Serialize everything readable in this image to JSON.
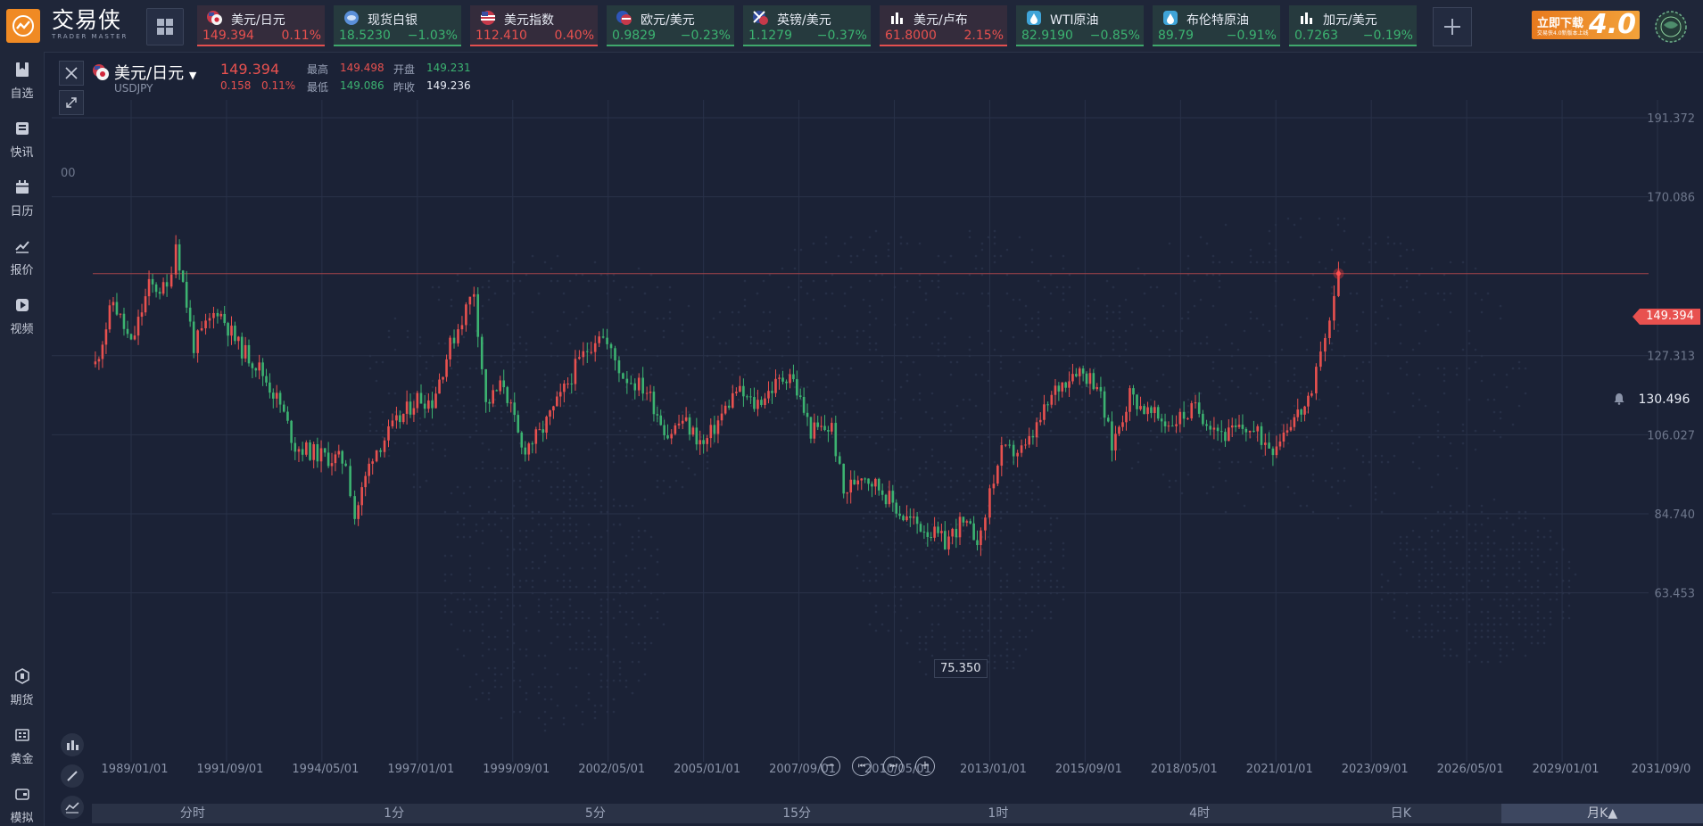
{
  "brand": {
    "name_cn": "交易侠",
    "name_en": "TRADER MASTER"
  },
  "tickers": [
    {
      "name": "美元/日元",
      "price": "149.394",
      "pct": "0.11%",
      "dir": "up",
      "icon": "us-jp-flag-icon"
    },
    {
      "name": "现货白银",
      "price": "18.5230",
      "pct": "−1.03%",
      "dir": "dn",
      "icon": "silver-icon"
    },
    {
      "name": "美元指数",
      "price": "112.410",
      "pct": "0.40%",
      "dir": "up",
      "icon": "us-flag-icon"
    },
    {
      "name": "欧元/美元",
      "price": "0.9829",
      "pct": "−0.23%",
      "dir": "dn",
      "icon": "eu-us-flag-icon"
    },
    {
      "name": "英镑/美元",
      "price": "1.1279",
      "pct": "−0.37%",
      "dir": "dn",
      "icon": "gb-us-flag-icon"
    },
    {
      "name": "美元/卢布",
      "price": "61.8000",
      "pct": "2.15%",
      "dir": "up",
      "icon": "bar-chart-icon"
    },
    {
      "name": "WTI原油",
      "price": "82.9190",
      "pct": "−0.85%",
      "dir": "dn",
      "icon": "oil-icon"
    },
    {
      "name": "布伦特原油",
      "price": "89.79",
      "pct": "−0.91%",
      "dir": "dn",
      "icon": "oil-icon"
    },
    {
      "name": "加元/美元",
      "price": "0.7263",
      "pct": "−0.19%",
      "dir": "dn",
      "icon": "bar-chart-icon"
    }
  ],
  "promo": {
    "line1": "立即下载",
    "line2": "交易侠4.0新版本上线",
    "big": "4.0"
  },
  "sidebar": [
    {
      "label": "自选",
      "icon": "bookmark-icon"
    },
    {
      "label": "快讯",
      "icon": "news-icon"
    },
    {
      "label": "日历",
      "icon": "calendar-icon"
    },
    {
      "label": "报价",
      "icon": "quote-chart-icon"
    },
    {
      "label": "视频",
      "icon": "video-icon"
    },
    {
      "label": "期货",
      "icon": "futures-icon"
    },
    {
      "label": "黄金",
      "icon": "gold-icon"
    },
    {
      "label": "模拟",
      "icon": "simulate-icon"
    }
  ],
  "symbol": {
    "title": "美元/日元",
    "code": "USDJPY",
    "last": "149.394",
    "change": "0.158",
    "change_pct": "0.11%",
    "high_label": "最高",
    "high": "149.498",
    "open_label": "开盘",
    "open": "149.231",
    "low_label": "最低",
    "low": "149.086",
    "prev_label": "昨收",
    "prev": "149.236"
  },
  "price_tag": "149.394",
  "alert_price": "130.496",
  "min_label": "75.350",
  "y_ticks": [
    "191.372",
    "170.086",
    "149.394",
    "127.313",
    "106.027",
    "84.740",
    "63.453"
  ],
  "x_ticks": [
    "1989/01/01",
    "1991/09/01",
    "1994/05/01",
    "1997/01/01",
    "1999/09/01",
    "2002/05/01",
    "2005/01/01",
    "2007/09/01",
    "2010/05/01",
    "2013/01/01",
    "2015/09/01",
    "2018/05/01",
    "2021/01/01",
    "2023/09/01",
    "2026/05/01",
    "2029/01/01",
    "2031/09/0"
  ],
  "periods": [
    "分时",
    "1分",
    "5分",
    "15分",
    "1时",
    "4时",
    "日K",
    "月K▲"
  ],
  "active_period": 7,
  "chart_data": {
    "type": "candlestick",
    "x_unit": "date",
    "y_ticks": [
      63.453,
      84.74,
      106.027,
      127.313,
      170.086,
      191.372
    ],
    "series": [
      {
        "x": "1988-01",
        "y": 125
      },
      {
        "x": "1988-07",
        "y": 142
      },
      {
        "x": "1989-01",
        "y": 130
      },
      {
        "x": "1989-07",
        "y": 146
      },
      {
        "x": "1990-01",
        "y": 145
      },
      {
        "x": "1990-04",
        "y": 158
      },
      {
        "x": "1990-10",
        "y": 130
      },
      {
        "x": "1991-06",
        "y": 140
      },
      {
        "x": "1992-01",
        "y": 130
      },
      {
        "x": "1992-08",
        "y": 124
      },
      {
        "x": "1993-03",
        "y": 114
      },
      {
        "x": "1993-08",
        "y": 103
      },
      {
        "x": "1994-06",
        "y": 100
      },
      {
        "x": "1995-01",
        "y": 99
      },
      {
        "x": "1995-04",
        "y": 84
      },
      {
        "x": "1995-10",
        "y": 101
      },
      {
        "x": "1996-06",
        "y": 109
      },
      {
        "x": "1997-01",
        "y": 116
      },
      {
        "x": "1997-06",
        "y": 115
      },
      {
        "x": "1997-12",
        "y": 130
      },
      {
        "x": "1998-08",
        "y": 145
      },
      {
        "x": "1998-12",
        "y": 114
      },
      {
        "x": "1999-06",
        "y": 120
      },
      {
        "x": "1999-12",
        "y": 102
      },
      {
        "x": "2000-06",
        "y": 106
      },
      {
        "x": "2001-01",
        "y": 116
      },
      {
        "x": "2001-06",
        "y": 124
      },
      {
        "x": "2002-02",
        "y": 134
      },
      {
        "x": "2002-10",
        "y": 122
      },
      {
        "x": "2003-06",
        "y": 118
      },
      {
        "x": "2004-01",
        "y": 106
      },
      {
        "x": "2004-06",
        "y": 110
      },
      {
        "x": "2005-01",
        "y": 103
      },
      {
        "x": "2005-12",
        "y": 118
      },
      {
        "x": "2006-06",
        "y": 114
      },
      {
        "x": "2007-06",
        "y": 123
      },
      {
        "x": "2008-01",
        "y": 107
      },
      {
        "x": "2008-08",
        "y": 108
      },
      {
        "x": "2008-12",
        "y": 90
      },
      {
        "x": "2009-06",
        "y": 96
      },
      {
        "x": "2010-01",
        "y": 91
      },
      {
        "x": "2010-08",
        "y": 84
      },
      {
        "x": "2011-03",
        "y": 81
      },
      {
        "x": "2011-10",
        "y": 77
      },
      {
        "x": "2012-03",
        "y": 82
      },
      {
        "x": "2012-10",
        "y": 78
      },
      {
        "x": "2013-01",
        "y": 91
      },
      {
        "x": "2013-05",
        "y": 101
      },
      {
        "x": "2014-01",
        "y": 102
      },
      {
        "x": "2014-11",
        "y": 118
      },
      {
        "x": "2015-06",
        "y": 124
      },
      {
        "x": "2016-01",
        "y": 120
      },
      {
        "x": "2016-06",
        "y": 103
      },
      {
        "x": "2016-12",
        "y": 117
      },
      {
        "x": "2017-06",
        "y": 112
      },
      {
        "x": "2018-01",
        "y": 109
      },
      {
        "x": "2018-10",
        "y": 113
      },
      {
        "x": "2019-08",
        "y": 106
      },
      {
        "x": "2020-03",
        "y": 108
      },
      {
        "x": "2020-12",
        "y": 103
      },
      {
        "x": "2021-06",
        "y": 110
      },
      {
        "x": "2022-01",
        "y": 115
      },
      {
        "x": "2022-04",
        "y": 130
      },
      {
        "x": "2022-07",
        "y": 136
      },
      {
        "x": "2022-10",
        "y": 149.394
      }
    ],
    "last_price": 149.394,
    "marked_min": 75.35,
    "alert_level": 130.496
  },
  "colors": {
    "up": "#e8514f",
    "down": "#3cb371",
    "bg": "#1b2236",
    "accent": "#f08a24"
  }
}
